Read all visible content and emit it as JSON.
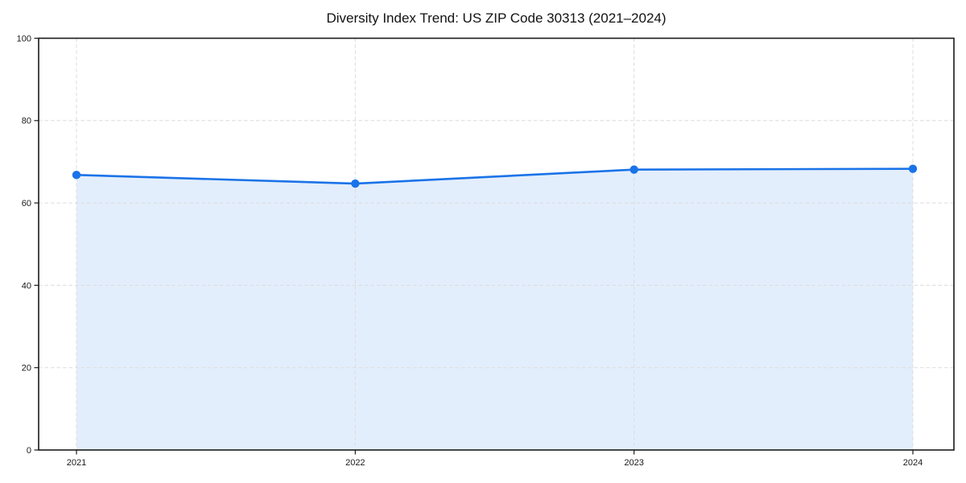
{
  "page": {
    "background": "#ffffff"
  },
  "chart_data": {
    "type": "area",
    "title": "Diversity Index Trend: US ZIP Code 30313 (2021–2024)",
    "x": [
      "2021",
      "2022",
      "2023",
      "2024"
    ],
    "series": [
      {
        "name": "Diversity Index",
        "values": [
          66.8,
          64.7,
          68.1,
          68.3
        ]
      }
    ],
    "xlabel": "",
    "ylabel": "",
    "ylim": [
      0,
      100
    ],
    "yticks": [
      0,
      20,
      40,
      60,
      80,
      100
    ],
    "grid": true,
    "grid_style": "dashed",
    "legend_position": "none",
    "colors": {
      "line": "#1a73e8",
      "marker": "#1a73e8",
      "fill": "rgba(26,115,232,0.12)",
      "grid": "#dcdcdc",
      "spine": "#1a1a1a",
      "tick_text": "#1a1a1a",
      "title_text": "#111111"
    }
  }
}
